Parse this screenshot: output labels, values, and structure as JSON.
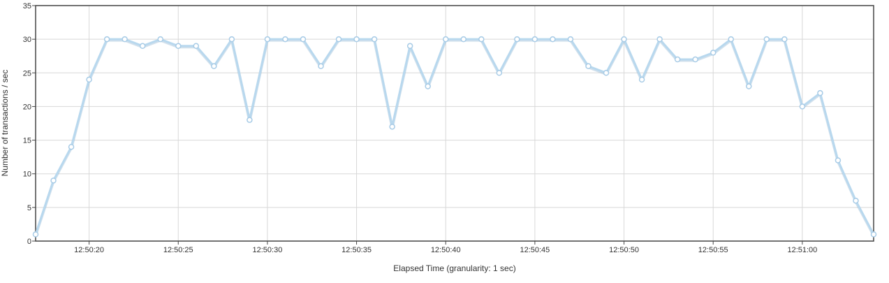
{
  "chart_data": {
    "type": "line",
    "xlabel": "Elapsed Time (granularity: 1 sec)",
    "ylabel": "Number of transactions / sec",
    "ylim": [
      0,
      35
    ],
    "y_ticks": [
      0,
      5,
      10,
      15,
      20,
      25,
      30,
      35
    ],
    "x_start": "12:50:17",
    "x_end": "12:51:04",
    "x_ticks": [
      "12:50:20",
      "12:50:25",
      "12:50:30",
      "12:50:35",
      "12:50:40",
      "12:50:45",
      "12:50:50",
      "12:50:55",
      "12:51:00"
    ],
    "grid": true,
    "x": [
      "12:50:17",
      "12:50:18",
      "12:50:19",
      "12:50:20",
      "12:50:21",
      "12:50:22",
      "12:50:23",
      "12:50:24",
      "12:50:25",
      "12:50:26",
      "12:50:27",
      "12:50:28",
      "12:50:29",
      "12:50:30",
      "12:50:31",
      "12:50:32",
      "12:50:33",
      "12:50:34",
      "12:50:35",
      "12:50:36",
      "12:50:37",
      "12:50:38",
      "12:50:39",
      "12:50:40",
      "12:50:41",
      "12:50:42",
      "12:50:43",
      "12:50:44",
      "12:50:45",
      "12:50:46",
      "12:50:47",
      "12:50:48",
      "12:50:49",
      "12:50:50",
      "12:50:51",
      "12:50:52",
      "12:50:53",
      "12:50:54",
      "12:50:55",
      "12:50:56",
      "12:50:57",
      "12:50:58",
      "12:50:59",
      "12:51:00",
      "12:51:01",
      "12:51:02",
      "12:51:03",
      "12:51:04"
    ],
    "series": [
      {
        "color": "#b8d8ee",
        "marker_fill": "#ffffff",
        "values": [
          1,
          9,
          14,
          24,
          30,
          30,
          29,
          30,
          29,
          29,
          26,
          30,
          18,
          30,
          30,
          30,
          26,
          30,
          30,
          30,
          17,
          29,
          23,
          30,
          30,
          30,
          25,
          30,
          30,
          30,
          30,
          26,
          25,
          30,
          24,
          30,
          27,
          27,
          28,
          30,
          23,
          30,
          30,
          20,
          22,
          12,
          6,
          1
        ]
      }
    ],
    "colors": {
      "grid": "#d8d8d8",
      "frame": "#444444",
      "text": "#333333"
    }
  }
}
